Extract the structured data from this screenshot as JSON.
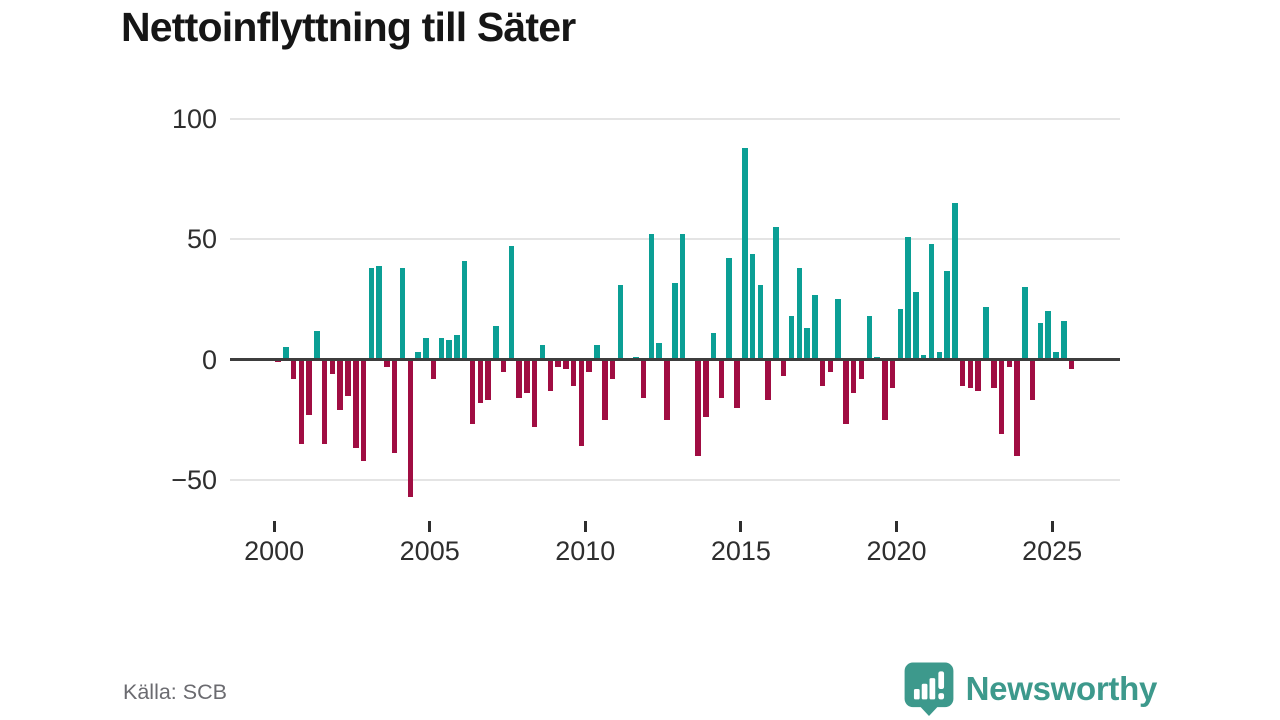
{
  "title": "Nettoinflyttning till Säter",
  "source": "Källa: SCB",
  "brand": {
    "name": "Newsworthy",
    "color": "#3d998c"
  },
  "colors": {
    "positive": "#0b9f95",
    "negative": "#a00d42",
    "grid": "#e4e4e4",
    "axis": "#3d3d3d",
    "tick_text": "#2e2e2e",
    "title_text": "#161616",
    "source_text": "#6b6b70"
  },
  "chart_data": {
    "type": "bar",
    "title": "Nettoinflyttning till Säter",
    "frequency": "quarterly",
    "x_start": "2000 Q1",
    "x_end": "2025 Q3",
    "xlabel": "",
    "ylabel": "",
    "grid": "horizontal",
    "legend": "none",
    "ylim": [
      -66,
      104
    ],
    "y_ticks": [
      100,
      50,
      0,
      -50
    ],
    "y_tick_labels": [
      "100",
      "50",
      "0",
      "−50"
    ],
    "x_tick_years": [
      2000,
      2005,
      2010,
      2015,
      2020,
      2025
    ],
    "x_tick_labels": [
      "2000",
      "2005",
      "2010",
      "2015",
      "2020",
      "2025"
    ],
    "values": [
      -1,
      5,
      -8,
      -35,
      -23,
      12,
      -35,
      -6,
      -21,
      -15,
      -37,
      -42,
      38,
      39,
      -3,
      -39,
      38,
      -57,
      3,
      9,
      -8,
      9,
      8,
      10,
      41,
      -27,
      -18,
      -17,
      14,
      -5,
      47,
      -16,
      -14,
      -28,
      6,
      -13,
      -3,
      -4,
      -11,
      -36,
      -5,
      6,
      -25,
      -8,
      31,
      0,
      1,
      -16,
      52,
      7,
      -25,
      32,
      52,
      0,
      -40,
      -24,
      11,
      -16,
      42,
      -20,
      88,
      44,
      31,
      -17,
      55,
      -7,
      18,
      38,
      13,
      27,
      -11,
      -5,
      25,
      -27,
      -14,
      -8,
      18,
      1,
      -25,
      -12,
      21,
      51,
      28,
      2,
      48,
      3,
      37,
      65,
      -11,
      -12,
      -13,
      22,
      -12,
      -31,
      -3,
      -40,
      30,
      -17,
      15,
      20,
      3,
      16,
      -4
    ]
  }
}
